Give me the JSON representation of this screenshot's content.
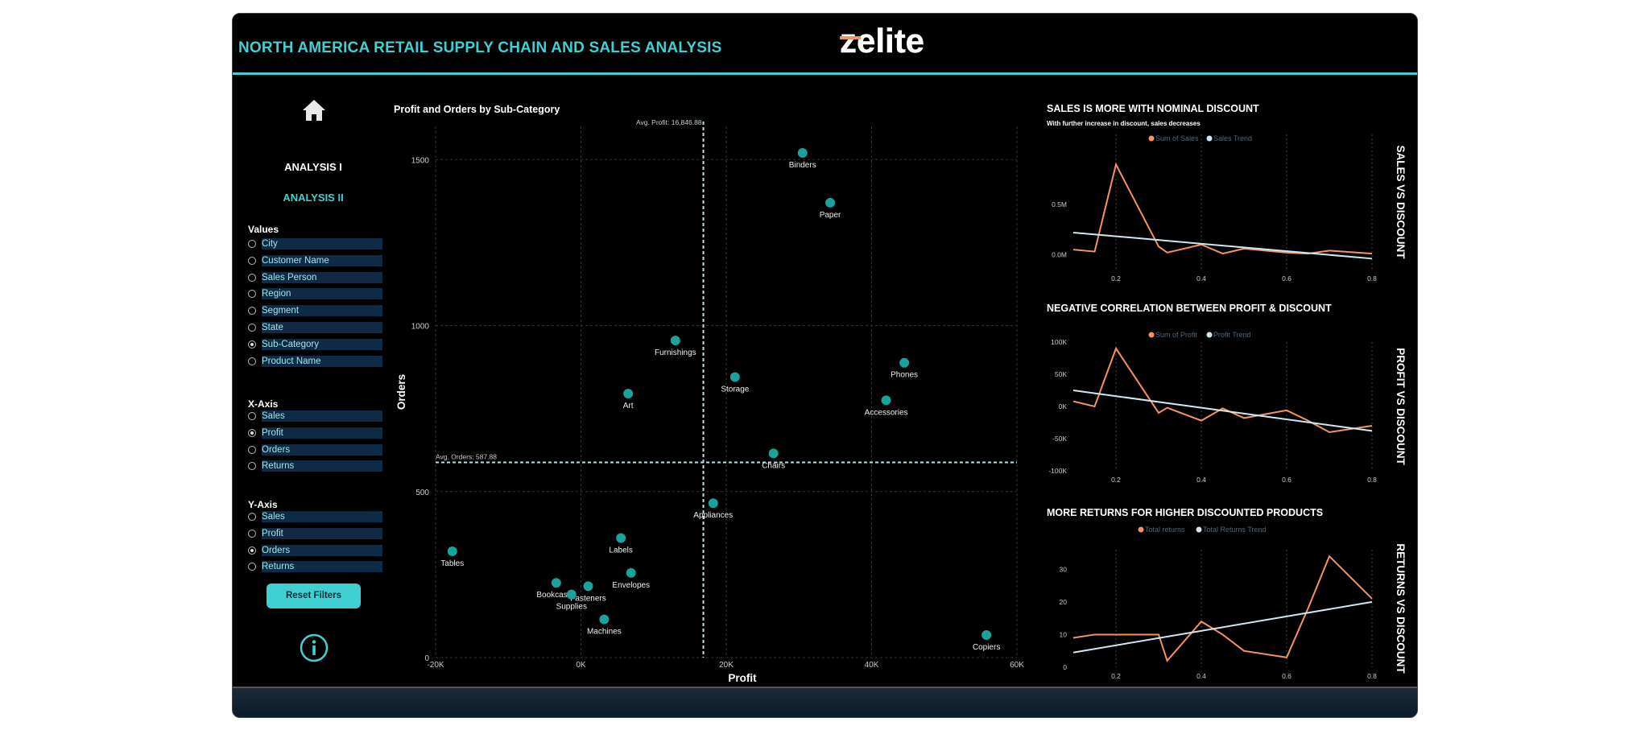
{
  "header": {
    "title": "NORTH AMERICA RETAIL SUPPLY CHAIN AND SALES ANALYSIS",
    "logo": "zelite"
  },
  "nav": {
    "analysis1": "ANALYSIS I",
    "analysis2": "ANALYSIS II"
  },
  "values": {
    "title": "Values",
    "options": [
      "City",
      "Customer Name",
      "Sales Person",
      "Region",
      "Segment",
      "State",
      "Sub-Category",
      "Product Name"
    ],
    "selected": "Sub-Category"
  },
  "xaxis": {
    "title": "X-Axis",
    "options": [
      "Sales",
      "Profit",
      "Orders",
      "Returns"
    ],
    "selected": "Profit"
  },
  "yaxis": {
    "title": "Y-Axis",
    "options": [
      "Sales",
      "Profit",
      "Orders",
      "Returns"
    ],
    "selected": "Orders"
  },
  "reset_label": "Reset Filters",
  "colors": {
    "accent": "#3fd0d4",
    "series": "#f4945e",
    "trend": "#cfe8f2",
    "point": "#1aa39a"
  },
  "chart_data": [
    {
      "type": "scatter",
      "title": "Profit and Orders by Sub-Category",
      "xlabel": "Profit",
      "ylabel": "Orders",
      "xlim": [
        -20000,
        60000
      ],
      "ylim": [
        0,
        1600
      ],
      "xticks": [
        -20000,
        0,
        20000,
        40000,
        60000
      ],
      "xtick_labels": [
        "-20K",
        "0K",
        "20K",
        "40K",
        "60K"
      ],
      "yticks": [
        0,
        500,
        1000,
        1500
      ],
      "ytick_labels": [
        "0",
        "500",
        "1000",
        "1500"
      ],
      "ref_x": {
        "value": 16846.88,
        "label": "Avg. Profit: 16,846.88"
      },
      "ref_y": {
        "value": 587.88,
        "label": "Avg. Orders: 587.88"
      },
      "points": [
        {
          "label": "Binders",
          "x": 30500,
          "y": 1520
        },
        {
          "label": "Paper",
          "x": 34300,
          "y": 1370
        },
        {
          "label": "Furnishings",
          "x": 13000,
          "y": 955
        },
        {
          "label": "Phones",
          "x": 44500,
          "y": 888
        },
        {
          "label": "Storage",
          "x": 21200,
          "y": 845
        },
        {
          "label": "Art",
          "x": 6500,
          "y": 795
        },
        {
          "label": "Accessories",
          "x": 42000,
          "y": 775
        },
        {
          "label": "Chairs",
          "x": 26500,
          "y": 615
        },
        {
          "label": "Appliances",
          "x": 18200,
          "y": 465
        },
        {
          "label": "Labels",
          "x": 5500,
          "y": 360
        },
        {
          "label": "Tables",
          "x": -17700,
          "y": 320
        },
        {
          "label": "Envelopes",
          "x": 6900,
          "y": 255
        },
        {
          "label": "Fasteners",
          "x": 1000,
          "y": 215
        },
        {
          "label": "Bookcases",
          "x": -3400,
          "y": 225
        },
        {
          "label": "Supplies",
          "x": -1300,
          "y": 190
        },
        {
          "label": "Machines",
          "x": 3200,
          "y": 115
        },
        {
          "label": "Copiers",
          "x": 55800,
          "y": 68
        }
      ]
    },
    {
      "type": "line",
      "title": "SALES IS MORE WITH NOMINAL DISCOUNT",
      "subtitle": "With further increase in discount, sales decreases",
      "side_title": "SALES VS DISCOUNT",
      "legend": [
        "Sum of Sales",
        "Sales Trend"
      ],
      "xlim": [
        0.1,
        0.8
      ],
      "ylim": [
        -0.15,
        1.2
      ],
      "xticks": [
        0.2,
        0.4,
        0.6,
        0.8
      ],
      "xtick_labels": [
        "0.2",
        "0.4",
        "0.6",
        "0.8"
      ],
      "yticks": [
        0,
        0.5
      ],
      "ytick_labels": [
        "0.0M",
        "0.5M"
      ],
      "series": [
        {
          "name": "Sum of Sales",
          "x": [
            0.1,
            0.15,
            0.2,
            0.3,
            0.32,
            0.4,
            0.45,
            0.5,
            0.6,
            0.65,
            0.7,
            0.8
          ],
          "values": [
            0.05,
            0.03,
            0.9,
            0.08,
            0.02,
            0.1,
            0.01,
            0.06,
            0.02,
            0.01,
            0.04,
            0.01
          ]
        }
      ],
      "trend": {
        "name": "Sales Trend",
        "x": [
          0.1,
          0.8
        ],
        "values": [
          0.22,
          -0.04
        ]
      }
    },
    {
      "type": "line",
      "title": "NEGATIVE CORRELATION BETWEEN PROFIT & DISCOUNT",
      "side_title": "PROFIT VS DISCOUNT",
      "legend": [
        "Sum of Profit",
        "Profit Trend"
      ],
      "xlim": [
        0.1,
        0.8
      ],
      "ylim": [
        -100000,
        100000
      ],
      "xticks": [
        0.2,
        0.4,
        0.6,
        0.8
      ],
      "xtick_labels": [
        "0.2",
        "0.4",
        "0.6",
        "0.8"
      ],
      "yticks": [
        -100000,
        -50000,
        0,
        50000,
        100000
      ],
      "ytick_labels": [
        "-100K",
        "-50K",
        "0K",
        "50K",
        "100K"
      ],
      "series": [
        {
          "name": "Sum of Profit",
          "x": [
            0.1,
            0.15,
            0.2,
            0.3,
            0.32,
            0.4,
            0.45,
            0.5,
            0.6,
            0.65,
            0.7,
            0.8
          ],
          "values": [
            8000,
            0,
            90000,
            -10000,
            -2000,
            -22000,
            -3000,
            -18000,
            -6000,
            -22000,
            -40000,
            -30000
          ]
        }
      ],
      "trend": {
        "name": "Profit Trend",
        "x": [
          0.1,
          0.8
        ],
        "values": [
          25000,
          -38000
        ]
      }
    },
    {
      "type": "line",
      "title": "MORE RETURNS FOR HIGHER DISCOUNTED PRODUCTS",
      "side_title": "RETURNS VS DISCOUNT",
      "legend": [
        "Total returns",
        "Total Returns Trend"
      ],
      "xlim": [
        0.1,
        0.8
      ],
      "ylim": [
        0,
        36
      ],
      "xticks": [
        0.2,
        0.4,
        0.6,
        0.8
      ],
      "xtick_labels": [
        "0.2",
        "0.4",
        "0.6",
        "0.8"
      ],
      "yticks": [
        0,
        10,
        20,
        30
      ],
      "ytick_labels": [
        "0",
        "10",
        "20",
        "30"
      ],
      "series": [
        {
          "name": "Total returns",
          "x": [
            0.1,
            0.15,
            0.2,
            0.3,
            0.32,
            0.4,
            0.45,
            0.5,
            0.6,
            0.65,
            0.7,
            0.8
          ],
          "values": [
            9,
            10,
            10,
            10,
            2,
            14,
            10,
            5,
            3,
            18,
            34,
            21
          ]
        }
      ],
      "trend": {
        "name": "Total Returns Trend",
        "x": [
          0.1,
          0.8
        ],
        "values": [
          4.5,
          20
        ]
      }
    }
  ]
}
